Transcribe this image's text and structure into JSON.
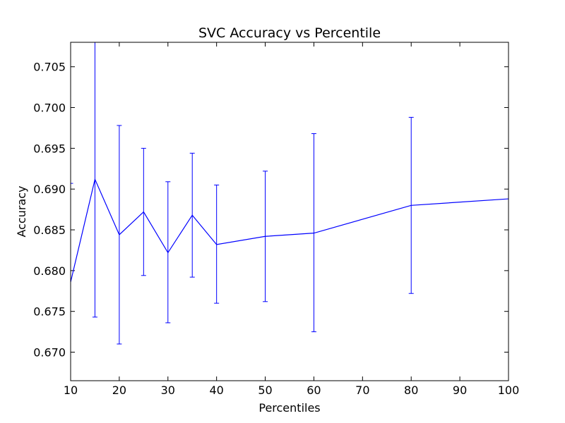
{
  "chart_data": {
    "type": "line",
    "title": "SVC Accuracy vs Percentile",
    "xlabel": "Percentiles",
    "ylabel": "Accuracy",
    "xlim": [
      10,
      100
    ],
    "ylim": [
      0.6665,
      0.708
    ],
    "x_ticks": [
      "10",
      "20",
      "30",
      "40",
      "50",
      "60",
      "70",
      "80",
      "90",
      "100"
    ],
    "y_ticks": [
      "0.670",
      "0.675",
      "0.680",
      "0.685",
      "0.690",
      "0.695",
      "0.700",
      "0.705"
    ],
    "grid": false,
    "line_color": "#0000ff",
    "series": [
      {
        "x": [
          10,
          15,
          20,
          25,
          30,
          35,
          40,
          50,
          60,
          80,
          100
        ],
        "y": [
          0.6786,
          0.6912,
          0.6844,
          0.6872,
          0.6822,
          0.6868,
          0.6832,
          0.6842,
          0.6846,
          0.688,
          0.6888
        ],
        "err_low": [
          0.6665,
          0.6743,
          0.671,
          0.6794,
          0.6736,
          0.6792,
          0.676,
          0.6762,
          0.6725,
          0.6772,
          0.6888
        ],
        "err_high": [
          0.6907,
          0.7085,
          0.6978,
          0.695,
          0.6909,
          0.6944,
          0.6905,
          0.6922,
          0.6968,
          0.6988,
          0.6888
        ]
      }
    ]
  }
}
